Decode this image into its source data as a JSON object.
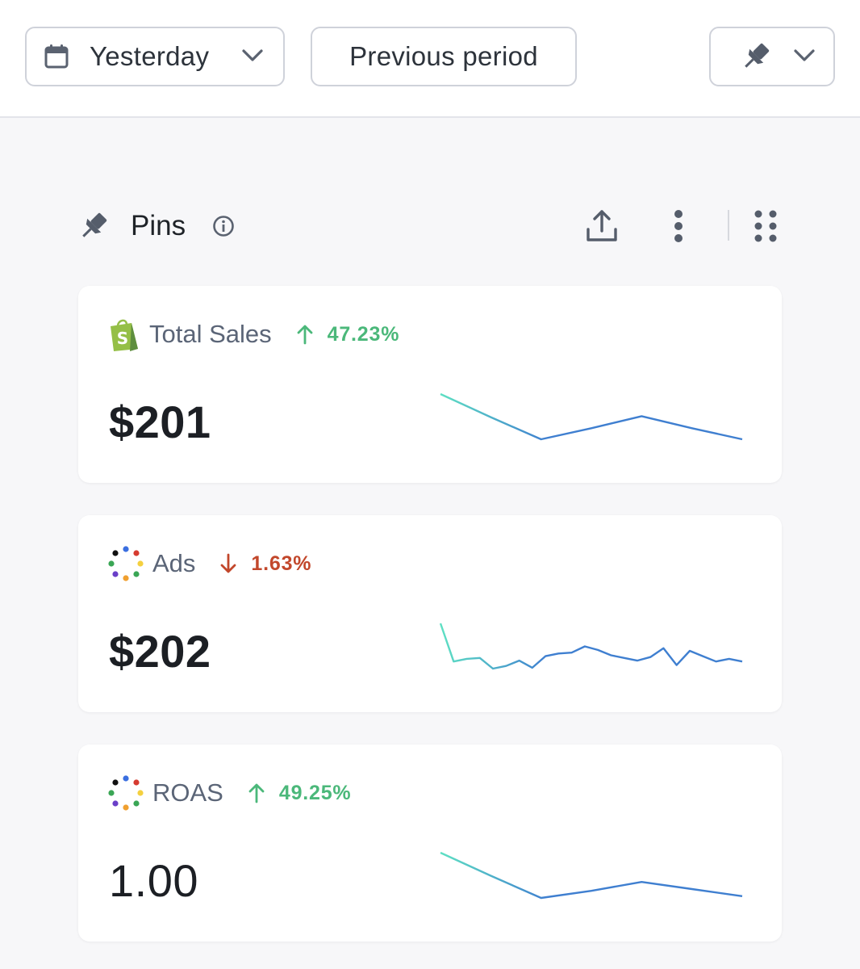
{
  "toolbar": {
    "date_range": "Yesterday",
    "compare": "Previous period"
  },
  "section": {
    "title": "Pins"
  },
  "cards": [
    {
      "icon": "shopify-icon",
      "name": "Total Sales",
      "change": "47.23%",
      "direction": "up",
      "value": "$201",
      "trend": [
        49,
        24,
        0,
        12,
        25,
        12,
        0
      ]
    },
    {
      "icon": "ads-dots-icon",
      "name": "Ads",
      "change": "1.63%",
      "direction": "down",
      "value": "$202",
      "trend": [
        52,
        9,
        12,
        13,
        1,
        4,
        10,
        2,
        15,
        18,
        19,
        26,
        22,
        16,
        13,
        10,
        14,
        24,
        5,
        21,
        15,
        9,
        12,
        9
      ]
    },
    {
      "icon": "ads-dots-icon",
      "name": "ROAS",
      "change": "49.25%",
      "direction": "up",
      "value": "1.00",
      "trend": [
        51,
        25,
        0,
        8,
        18,
        10,
        2
      ]
    }
  ],
  "colors": {
    "up": "#4bb87a",
    "down": "#c2472b",
    "spark_start": "#5ee0c3",
    "spark_end": "#3f7fd0"
  }
}
